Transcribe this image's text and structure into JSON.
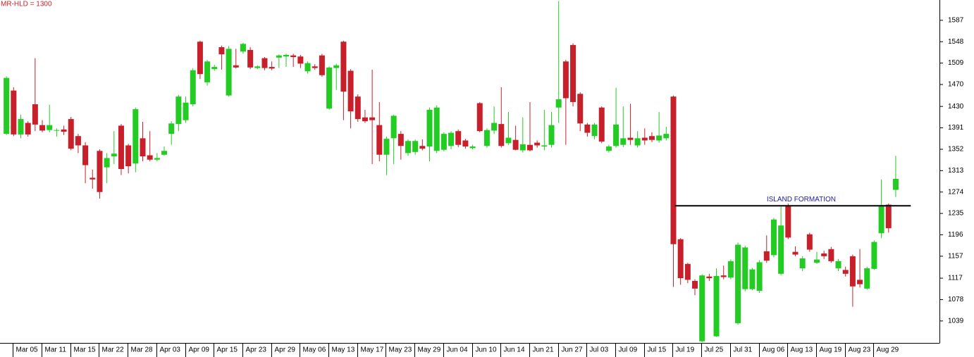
{
  "chart_data": {
    "type": "candlestick",
    "title": "MR-HLD = 1300",
    "up_color": "#22cc22",
    "down_color": "#c8202a",
    "open": [
      1380,
      1459,
      1379,
      1400,
      1434,
      1396,
      1387,
      1386,
      1388,
      1407,
      1376,
      1359,
      1300,
      1349,
      1319,
      1339,
      1395,
      1359,
      1326,
      1372,
      1341,
      1333,
      1342,
      1380,
      1398,
      1405,
      1434,
      1548,
      1474,
      1498,
      1538,
      1450,
      1505,
      1530,
      1533,
      1500,
      1518,
      1502,
      1519,
      1521,
      1523,
      1521,
      1494,
      1503,
      1523,
      1426,
      1500,
      1548,
      1495,
      1448,
      1410,
      1410,
      1396,
      1342,
      1372,
      1380,
      1345,
      1347,
      1358,
      1357,
      1349,
      1351,
      1358,
      1385,
      1368,
      1354,
      1436,
      1358,
      1386,
      1398,
      1363,
      1369,
      1350,
      1360,
      1364,
      1357,
      1360,
      1428,
      1512,
      1542,
      1453,
      1397,
      1376,
      1428,
      1349,
      1358,
      1360,
      1373,
      1359,
      1373,
      1376,
      1368,
      1372,
      1448,
      1188,
      1143,
      1112,
      1002,
      1120,
      1011,
      1122,
      1118,
      1035,
      1097,
      1097,
      1094,
      1166,
      1159,
      1125,
      1250,
      1165,
      1135,
      1197,
      1145,
      1162,
      1170,
      1135,
      1132,
      1157,
      1114,
      1098,
      1134,
      1199,
      1251,
      1278
    ],
    "high": [
      1485,
      1465,
      1415,
      1403,
      1518,
      1405,
      1433,
      1390,
      1395,
      1411,
      1380,
      1365,
      1315,
      1352,
      1345,
      1385,
      1398,
      1362,
      1428,
      1402,
      1385,
      1345,
      1357,
      1403,
      1451,
      1448,
      1500,
      1550,
      1515,
      1506,
      1541,
      1540,
      1535,
      1546,
      1538,
      1505,
      1520,
      1512,
      1525,
      1526,
      1526,
      1524,
      1512,
      1507,
      1526,
      1503,
      1508,
      1550,
      1498,
      1452,
      1424,
      1497,
      1438,
      1375,
      1415,
      1385,
      1370,
      1370,
      1370,
      1428,
      1432,
      1383,
      1385,
      1388,
      1371,
      1360,
      1438,
      1390,
      1430,
      1465,
      1420,
      1395,
      1410,
      1438,
      1368,
      1424,
      1420,
      1622,
      1515,
      1545,
      1456,
      1400,
      1400,
      1430,
      1360,
      1464,
      1430,
      1435,
      1385,
      1390,
      1383,
      1420,
      1393,
      1450,
      1190,
      1145,
      1115,
      1124,
      1125,
      1135,
      1140,
      1151,
      1182,
      1176,
      1136,
      1150,
      1195,
      1227,
      1248,
      1253,
      1175,
      1157,
      1200,
      1165,
      1167,
      1174,
      1152,
      1138,
      1160,
      1170,
      1138,
      1186,
      1297,
      1253,
      1340
    ],
    "low": [
      1378,
      1376,
      1372,
      1375,
      1385,
      1383,
      1383,
      1375,
      1378,
      1350,
      1345,
      1290,
      1280,
      1262,
      1290,
      1325,
      1305,
      1308,
      1310,
      1330,
      1330,
      1330,
      1340,
      1360,
      1385,
      1400,
      1430,
      1480,
      1468,
      1495,
      1497,
      1448,
      1499,
      1526,
      1498,
      1498,
      1496,
      1496,
      1500,
      1502,
      1502,
      1500,
      1490,
      1497,
      1484,
      1424,
      1460,
      1405,
      1390,
      1402,
      1400,
      1325,
      1330,
      1305,
      1325,
      1333,
      1340,
      1342,
      1350,
      1330,
      1345,
      1348,
      1352,
      1356,
      1353,
      1352,
      1383,
      1355,
      1380,
      1355,
      1360,
      1350,
      1346,
      1348,
      1355,
      1350,
      1355,
      1400,
      1360,
      1430,
      1385,
      1375,
      1370,
      1363,
      1346,
      1355,
      1356,
      1360,
      1355,
      1360,
      1365,
      1364,
      1368,
      1101,
      1105,
      1108,
      1086,
      1000,
      1112,
      1010,
      1115,
      1115,
      1032,
      1093,
      1095,
      1090,
      1145,
      1155,
      1122,
      1188,
      1157,
      1130,
      1165,
      1143,
      1152,
      1145,
      1130,
      1120,
      1065,
      1100,
      1096,
      1132,
      1190,
      1200,
      1265
    ],
    "close": [
      1482,
      1379,
      1407,
      1379,
      1397,
      1386,
      1396,
      1387,
      1384,
      1353,
      1359,
      1323,
      1297,
      1274,
      1336,
      1344,
      1316,
      1321,
      1425,
      1339,
      1333,
      1336,
      1349,
      1399,
      1448,
      1437,
      1496,
      1489,
      1512,
      1502,
      1525,
      1535,
      1501,
      1544,
      1501,
      1503,
      1500,
      1499,
      1523,
      1524,
      1520,
      1508,
      1509,
      1500,
      1487,
      1501,
      1505,
      1457,
      1421,
      1407,
      1403,
      1405,
      1342,
      1371,
      1413,
      1358,
      1367,
      1367,
      1353,
      1424,
      1428,
      1380,
      1382,
      1360,
      1357,
      1357,
      1385,
      1387,
      1400,
      1358,
      1373,
      1351,
      1361,
      1350,
      1359,
      1359,
      1396,
      1443,
      1445,
      1438,
      1399,
      1382,
      1397,
      1366,
      1357,
      1397,
      1372,
      1369,
      1372,
      1368,
      1369,
      1377,
      1380,
      1179,
      1117,
      1114,
      1098,
      1122,
      1117,
      1121,
      1119,
      1148,
      1178,
      1173,
      1133,
      1146,
      1149,
      1224,
      1213,
      1191,
      1160,
      1153,
      1169,
      1151,
      1157,
      1148,
      1148,
      1125,
      1102,
      1106,
      1135,
      1183,
      1250,
      1208,
      1298
    ],
    "xlim": [
      -0.9,
      130.1
    ],
    "ylim": [
      999,
      1624
    ],
    "yticks": [
      1039,
      1078,
      1117,
      1157,
      1196,
      1235,
      1274,
      1313,
      1352,
      1391,
      1430,
      1470,
      1509,
      1548,
      1587
    ],
    "xticks": [
      {
        "value": 0.9,
        "label": "Mar 05"
      },
      {
        "value": 4.9,
        "label": "Mar 11"
      },
      {
        "value": 8.9,
        "label": "Mar 15"
      },
      {
        "value": 12.9,
        "label": "Mar 22"
      },
      {
        "value": 16.9,
        "label": "Mar 28"
      },
      {
        "value": 20.9,
        "label": "Apr 03"
      },
      {
        "value": 24.9,
        "label": "Apr 09"
      },
      {
        "value": 28.9,
        "label": "Apr 15"
      },
      {
        "value": 32.9,
        "label": "Apr 23"
      },
      {
        "value": 36.9,
        "label": "Apr 29"
      },
      {
        "value": 40.9,
        "label": "May 06"
      },
      {
        "value": 44.9,
        "label": "May 13"
      },
      {
        "value": 48.9,
        "label": "May 17"
      },
      {
        "value": 52.9,
        "label": "May 23"
      },
      {
        "value": 56.9,
        "label": "May 29"
      },
      {
        "value": 60.9,
        "label": "Jun 04"
      },
      {
        "value": 64.9,
        "label": "Jun 10"
      },
      {
        "value": 68.9,
        "label": "Jun 14"
      },
      {
        "value": 72.9,
        "label": "Jun 21"
      },
      {
        "value": 76.9,
        "label": "Jun 27"
      },
      {
        "value": 80.9,
        "label": "Jul 03"
      },
      {
        "value": 84.9,
        "label": "Jul 09"
      },
      {
        "value": 88.9,
        "label": "Jul 15"
      },
      {
        "value": 92.9,
        "label": "Jul 19"
      },
      {
        "value": 96.9,
        "label": "Jul 25"
      },
      {
        "value": 100.9,
        "label": "Jul 31"
      },
      {
        "value": 104.9,
        "label": "Aug 06"
      },
      {
        "value": 108.9,
        "label": "Aug 13"
      },
      {
        "value": 112.9,
        "label": "Aug 19"
      },
      {
        "value": 116.9,
        "label": "Aug 23"
      },
      {
        "value": 120.9,
        "label": "Aug 29"
      }
    ],
    "island_line": {
      "label": "ISLAND FORMATION",
      "y": 1249,
      "x": [
        93.2,
        126.1
      ],
      "color": "#000000",
      "label_color": "#1a1aa8"
    }
  }
}
